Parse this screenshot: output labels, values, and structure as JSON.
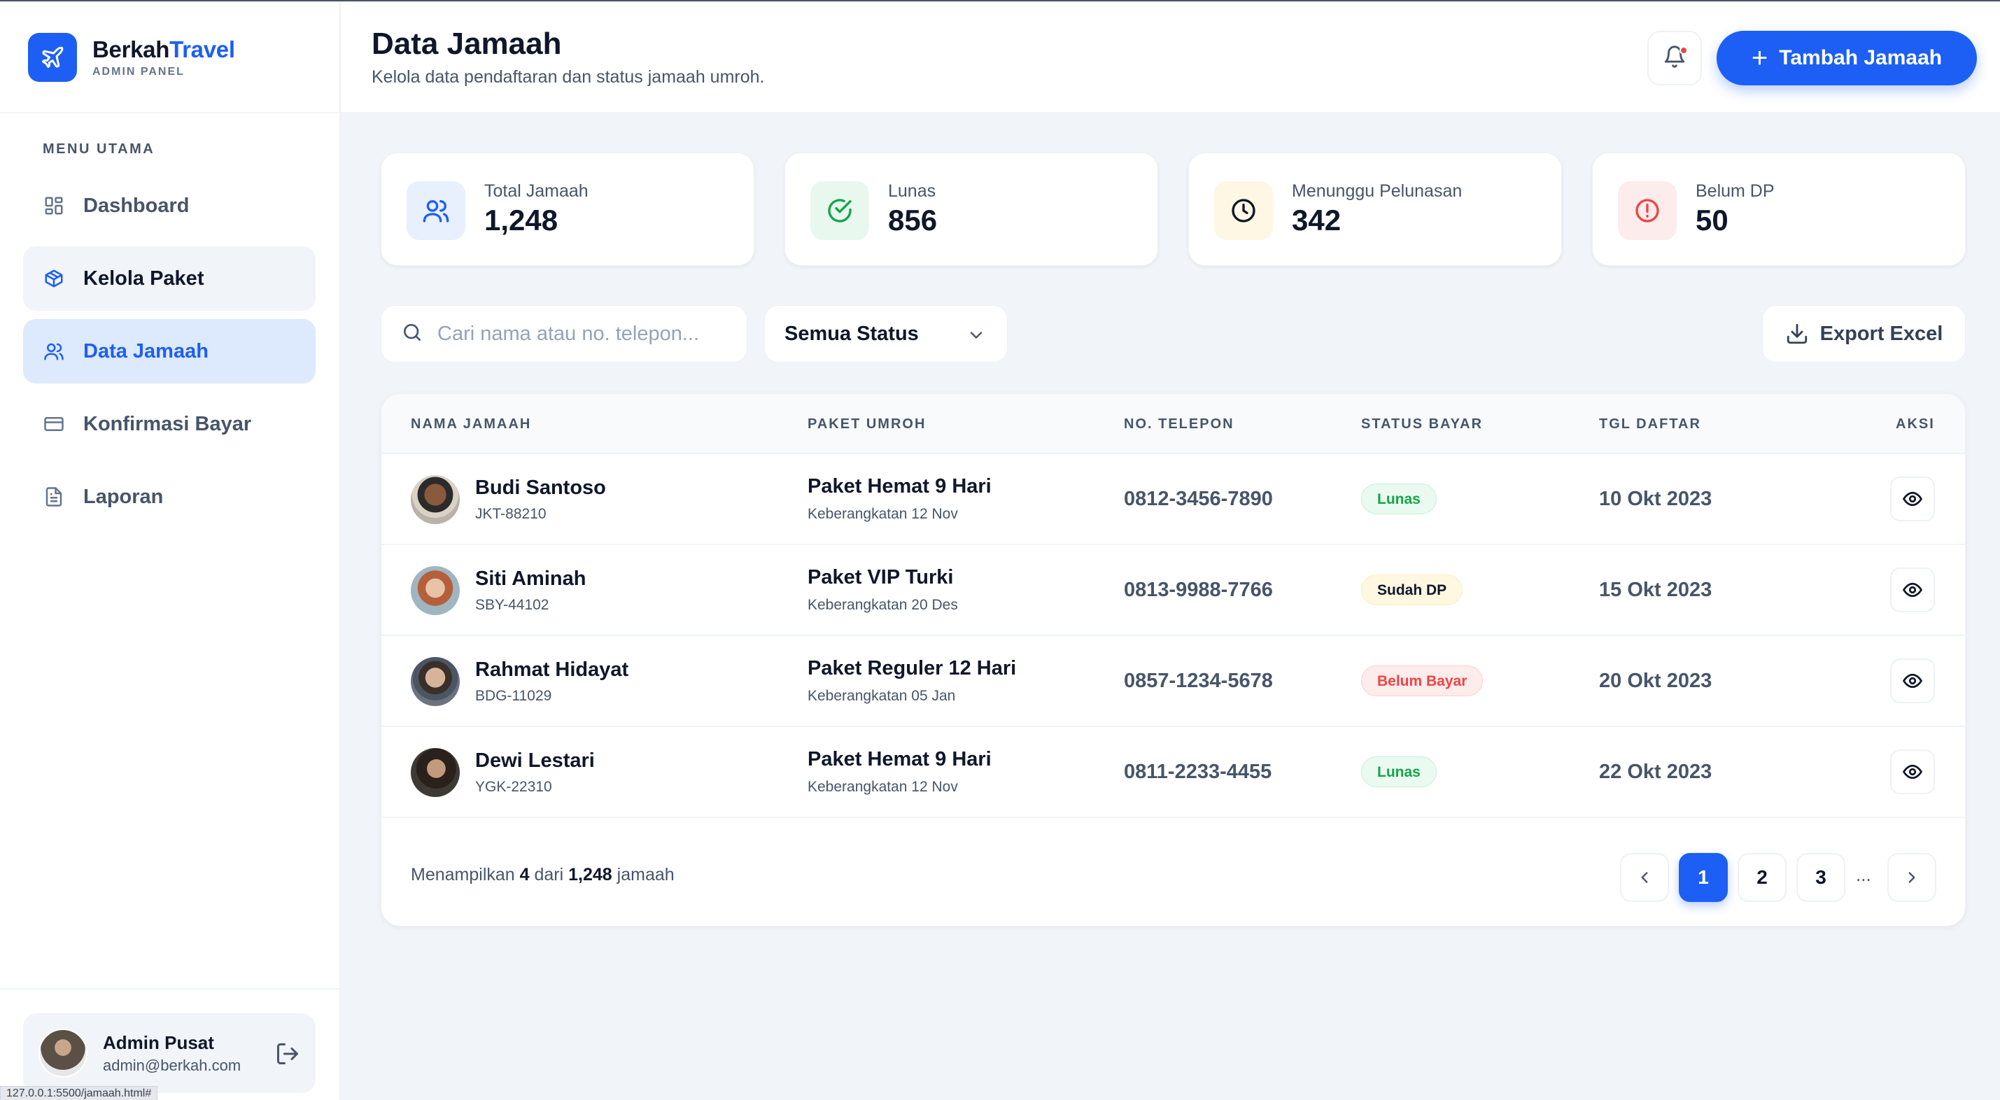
{
  "brand": {
    "name_part1": "Berkah",
    "name_part2": "Travel",
    "subtitle": "ADMIN PANEL",
    "logo_icon": "plane-icon",
    "accent": "#1d5ff5"
  },
  "sidebar": {
    "section_title": "MENU UTAMA",
    "items": [
      {
        "label": "Dashboard",
        "icon": "dashboard-grid-icon",
        "state": "normal"
      },
      {
        "label": "Kelola Paket",
        "icon": "package-box-icon",
        "state": "hover"
      },
      {
        "label": "Data Jamaah",
        "icon": "users-icon",
        "state": "active"
      },
      {
        "label": "Konfirmasi Bayar",
        "icon": "credit-card-icon",
        "state": "normal"
      },
      {
        "label": "Laporan",
        "icon": "document-icon",
        "state": "normal"
      }
    ],
    "user": {
      "name": "Admin Pusat",
      "email": "admin@berkah.com"
    }
  },
  "status_bar": {
    "url": "127.0.0.1:5500/jamaah.html#"
  },
  "header": {
    "title": "Data Jamaah",
    "subtitle": "Kelola data pendaftaran dan status jamaah umroh.",
    "add_button": "Tambah Jamaah"
  },
  "stats": [
    {
      "label": "Total Jamaah",
      "value": "1,248",
      "icon": "users-icon",
      "color": "#1d5ff5",
      "bg": "#e8effd"
    },
    {
      "label": "Lunas",
      "value": "856",
      "icon": "check-circle-icon",
      "color": "#16a34a",
      "bg": "#e8f8ee"
    },
    {
      "label": "Menunggu Pelunasan",
      "value": "342",
      "icon": "clock-icon",
      "color": "#0f172a",
      "bg": "#fdf7e3"
    },
    {
      "label": "Belum DP",
      "value": "50",
      "icon": "alert-circle-icon",
      "color": "#ef4444",
      "bg": "#fdecec"
    }
  ],
  "filters": {
    "search_placeholder": "Cari nama atau no. telepon...",
    "status_selected": "Semua Status",
    "export_label": "Export Excel"
  },
  "table": {
    "columns": [
      "NAMA JAMAAH",
      "PAKET UMROH",
      "NO. TELEPON",
      "STATUS BAYAR",
      "TGL DAFTAR",
      "AKSI"
    ],
    "rows": [
      {
        "name": "Budi Santoso",
        "code": "JKT-88210",
        "package": "Paket Hemat 9 Hari",
        "departure": "Keberangkatan 12 Nov",
        "phone": "0812-3456-7890",
        "status": "Lunas",
        "status_type": "lunas",
        "date": "10 Okt 2023"
      },
      {
        "name": "Siti Aminah",
        "code": "SBY-44102",
        "package": "Paket VIP Turki",
        "departure": "Keberangkatan 20 Des",
        "phone": "0813-9988-7766",
        "status": "Sudah DP",
        "status_type": "dp",
        "date": "15 Okt 2023"
      },
      {
        "name": "Rahmat Hidayat",
        "code": "BDG-11029",
        "package": "Paket Reguler 12 Hari",
        "departure": "Keberangkatan 05 Jan",
        "phone": "0857-1234-5678",
        "status": "Belum Bayar",
        "status_type": "belum",
        "date": "20 Okt 2023"
      },
      {
        "name": "Dewi Lestari",
        "code": "YGK-22310",
        "package": "Paket Hemat 9 Hari",
        "departure": "Keberangkatan 12 Nov",
        "phone": "0811-2233-4455",
        "status": "Lunas",
        "status_type": "lunas",
        "date": "22 Okt 2023"
      }
    ]
  },
  "footer": {
    "showing_prefix": "Menampilkan",
    "showing_count": "4",
    "showing_mid": "dari",
    "showing_total": "1,248",
    "showing_suffix": "jamaah",
    "pages": [
      "1",
      "2",
      "3"
    ],
    "ellipsis": "...",
    "current_page": "1"
  }
}
